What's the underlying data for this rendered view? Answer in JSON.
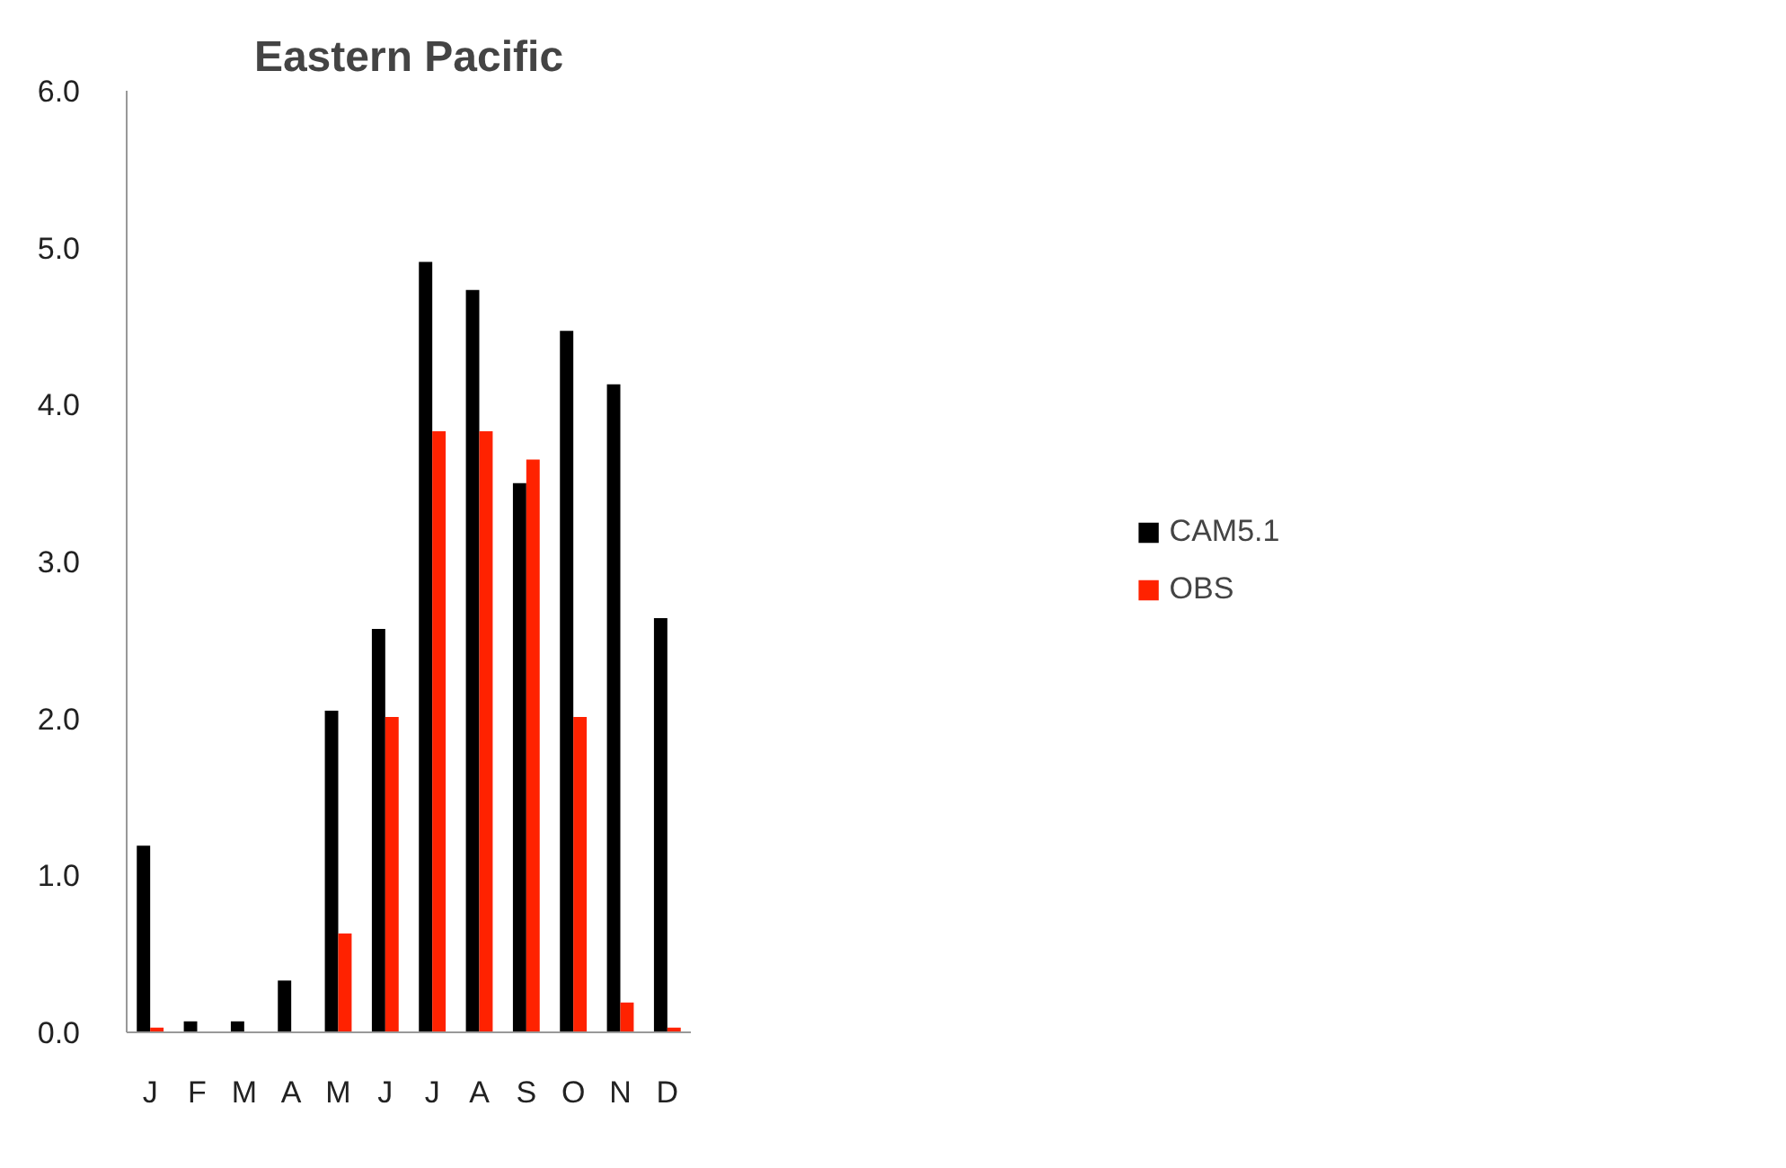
{
  "chart_data": {
    "type": "bar",
    "title": "Eastern Pacific",
    "categories": [
      "J",
      "F",
      "M",
      "A",
      "M",
      "J",
      "J",
      "A",
      "S",
      "O",
      "N",
      "D"
    ],
    "series": [
      {
        "name": "CAM5.1",
        "color": "#000000",
        "values": [
          1.19,
          0.07,
          0.07,
          0.33,
          2.05,
          2.57,
          4.91,
          4.73,
          3.5,
          4.47,
          4.13,
          2.64
        ]
      },
      {
        "name": "OBS",
        "color": "#ff2200",
        "values": [
          0.03,
          0,
          0,
          0,
          0.63,
          2.01,
          3.83,
          3.83,
          3.65,
          2.01,
          0.19,
          0.03
        ]
      }
    ],
    "ylim": [
      0,
      6
    ],
    "yticks": [
      {
        "value": 0,
        "label": "0.0"
      },
      {
        "value": 1,
        "label": "1.0"
      },
      {
        "value": 2,
        "label": "2.0"
      },
      {
        "value": 3,
        "label": "3.0"
      },
      {
        "value": 4,
        "label": "4.0"
      },
      {
        "value": 5,
        "label": "5.0"
      },
      {
        "value": 6,
        "label": "6.0"
      }
    ],
    "grid": false,
    "legend": "right"
  }
}
